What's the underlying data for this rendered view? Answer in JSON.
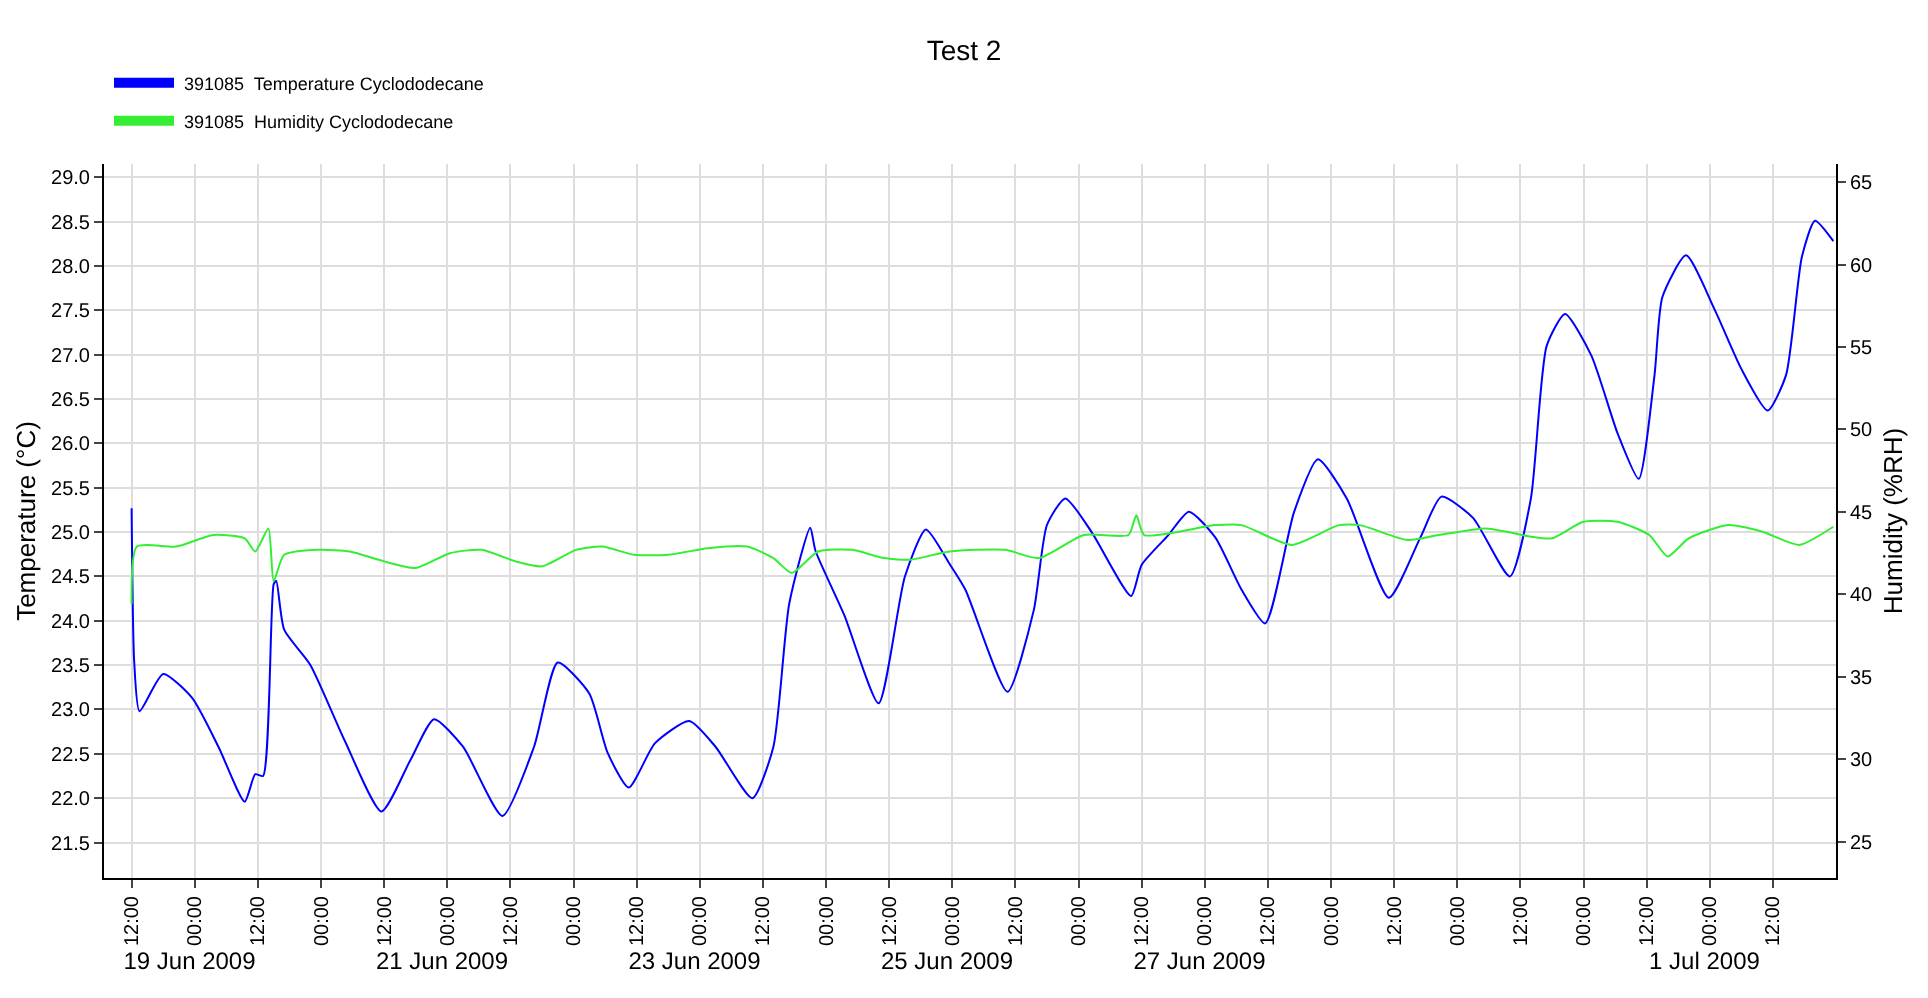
{
  "chart_data": {
    "type": "line",
    "title": "Test 2",
    "ylabel": "Temperature (°C)",
    "y2label": "Humidity (%RH)",
    "xlim": [
      "2009-06-19T06:45",
      "2009-07-03T00:00"
    ],
    "xticks": [
      {
        "value": "2009-06-19T12:00",
        "label": "12:00"
      },
      {
        "value": "2009-06-20T00:00",
        "label": "00:00"
      },
      {
        "value": "2009-06-20T12:00",
        "label": "12:00"
      },
      {
        "value": "2009-06-21T00:00",
        "label": "00:00"
      },
      {
        "value": "2009-06-21T12:00",
        "label": "12:00"
      },
      {
        "value": "2009-06-22T00:00",
        "label": "00:00"
      },
      {
        "value": "2009-06-22T12:00",
        "label": "12:00"
      },
      {
        "value": "2009-06-23T00:00",
        "label": "00:00"
      },
      {
        "value": "2009-06-23T12:00",
        "label": "12:00"
      },
      {
        "value": "2009-06-24T00:00",
        "label": "00:00"
      },
      {
        "value": "2009-06-24T12:00",
        "label": "12:00"
      },
      {
        "value": "2009-06-25T00:00",
        "label": "00:00"
      },
      {
        "value": "2009-06-25T12:00",
        "label": "12:00"
      },
      {
        "value": "2009-06-26T00:00",
        "label": "00:00"
      },
      {
        "value": "2009-06-26T12:00",
        "label": "12:00"
      },
      {
        "value": "2009-06-27T00:00",
        "label": "00:00"
      },
      {
        "value": "2009-06-27T12:00",
        "label": "12:00"
      },
      {
        "value": "2009-06-28T00:00",
        "label": "00:00"
      },
      {
        "value": "2009-06-28T12:00",
        "label": "12:00"
      },
      {
        "value": "2009-06-29T00:00",
        "label": "00:00"
      },
      {
        "value": "2009-06-29T12:00",
        "label": "12:00"
      },
      {
        "value": "2009-06-30T00:00",
        "label": "00:00"
      },
      {
        "value": "2009-06-30T12:00",
        "label": "12:00"
      },
      {
        "value": "2009-07-01T00:00",
        "label": "00:00"
      },
      {
        "value": "2009-07-01T12:00",
        "label": "12:00"
      },
      {
        "value": "2009-07-02T00:00",
        "label": "00:00"
      },
      {
        "value": "2009-07-02T12:00",
        "label": "12:00"
      }
    ],
    "x2lim": [
      "2009-06-19T06:45",
      "2009-07-03T00:00"
    ],
    "x2ticks": [
      {
        "value": "2009-06-19T23:00",
        "label": "19 Jun 2009"
      },
      {
        "value": "2009-06-21T23:00",
        "label": "21 Jun 2009"
      },
      {
        "value": "2009-06-23T23:00",
        "label": "23 Jun 2009"
      },
      {
        "value": "2009-06-25T23:00",
        "label": "25 Jun 2009"
      },
      {
        "value": "2009-06-27T23:00",
        "label": "27 Jun 2009"
      },
      {
        "value": "2009-07-01T23:00",
        "label": "1 Jul 2009"
      }
    ],
    "ylim": [
      21.1,
      29.15
    ],
    "yticks": [
      21.5,
      {
        "value": 22,
        "label": "22.0"
      },
      22.5,
      {
        "value": 23,
        "label": "23.0"
      },
      23.5,
      {
        "value": 24,
        "label": "24.0"
      },
      24.5,
      {
        "value": 25,
        "label": "25.0"
      },
      25.5,
      {
        "value": 26,
        "label": "26.0"
      },
      26.5,
      {
        "value": 27,
        "label": "27.0"
      },
      27.5,
      {
        "value": 28,
        "label": "28.0"
      },
      28.5,
      {
        "value": 29,
        "label": "29.0"
      }
    ],
    "y2lim": [
      22.8,
      66.1
    ],
    "y2ticks": [
      25,
      30,
      35,
      40,
      45,
      50,
      55,
      60,
      65
    ],
    "grid": true,
    "legend": "top left",
    "series": [
      {
        "name": "391085  Temperature Cyclododecane",
        "color": "#0000ff",
        "x": [
          "2009-06-19T12:00",
          "2009-06-19T12:30",
          "2009-06-19T13:30",
          "2009-06-19T18:00",
          "2009-06-19T23:30",
          "2009-06-20T04:30",
          "2009-06-20T09:30",
          "2009-06-20T11:30",
          "2009-06-20T13:00",
          "2009-06-20T15:00",
          "2009-06-20T15:30",
          "2009-06-20T17:00",
          "2009-06-20T22:00",
          "2009-06-21T04:30",
          "2009-06-21T11:30",
          "2009-06-21T17:00",
          "2009-06-21T21:30",
          "2009-06-22T03:00",
          "2009-06-22T10:30",
          "2009-06-22T16:30",
          "2009-06-22T21:00",
          "2009-06-23T03:00",
          "2009-06-23T06:30",
          "2009-06-23T10:30",
          "2009-06-23T15:30",
          "2009-06-23T22:00",
          "2009-06-24T03:00",
          "2009-06-24T10:00",
          "2009-06-24T14:00",
          "2009-06-24T17:00",
          "2009-06-24T21:00",
          "2009-06-24T22:00",
          "2009-06-25T03:30",
          "2009-06-25T10:00",
          "2009-06-25T15:00",
          "2009-06-25T19:00",
          "2009-06-25T23:30",
          "2009-06-26T02:30",
          "2009-06-26T10:30",
          "2009-06-26T15:30",
          "2009-06-26T18:00",
          "2009-06-26T21:30",
          "2009-06-27T02:30",
          "2009-06-27T10:00",
          "2009-06-27T12:00",
          "2009-06-27T17:00",
          "2009-06-27T21:00",
          "2009-06-28T02:00",
          "2009-06-28T07:00",
          "2009-06-28T11:30",
          "2009-06-28T17:00",
          "2009-06-28T21:30",
          "2009-06-29T03:00",
          "2009-06-29T11:00",
          "2009-06-29T17:00",
          "2009-06-29T21:00",
          "2009-06-30T03:00",
          "2009-06-30T10:00",
          "2009-06-30T14:00",
          "2009-06-30T17:00",
          "2009-06-30T20:30",
          "2009-07-01T01:30",
          "2009-07-01T06:30",
          "2009-07-01T10:30",
          "2009-07-01T13:30",
          "2009-07-01T15:00",
          "2009-07-01T19:30",
          "2009-07-02T01:00",
          "2009-07-02T06:00",
          "2009-07-02T11:00",
          "2009-07-02T14:30",
          "2009-07-02T17:30",
          "2009-07-02T20:00",
          "2009-07-02T23:30"
        ],
        "values": [
          25.27,
          23.53,
          22.98,
          23.4,
          23.13,
          22.58,
          21.96,
          22.27,
          22.25,
          24.41,
          24.45,
          23.9,
          23.5,
          22.65,
          21.85,
          22.43,
          22.89,
          22.58,
          21.8,
          22.58,
          23.53,
          23.18,
          22.51,
          22.12,
          22.62,
          22.87,
          22.58,
          22.0,
          22.58,
          24.19,
          25.05,
          24.79,
          24.06,
          23.07,
          24.5,
          25.03,
          24.64,
          24.35,
          23.2,
          24.12,
          25.08,
          25.38,
          25.0,
          24.28,
          24.63,
          24.96,
          25.23,
          24.94,
          24.35,
          23.97,
          25.23,
          25.82,
          25.38,
          24.26,
          24.94,
          25.4,
          25.16,
          24.5,
          25.38,
          27.1,
          27.46,
          26.99,
          26.11,
          25.6,
          26.77,
          27.65,
          28.12,
          27.5,
          26.84,
          26.37,
          26.77,
          28.1,
          28.51,
          28.28
        ]
      },
      {
        "name": "391085  Humidity Cyclododecane",
        "color": "#33ee33",
        "axis": "y2",
        "x": [
          "2009-06-19T12:00",
          "2009-06-19T13:00",
          "2009-06-19T20:30",
          "2009-06-20T03:30",
          "2009-06-20T09:30",
          "2009-06-20T11:30",
          "2009-06-20T14:00",
          "2009-06-20T15:00",
          "2009-06-20T17:00",
          "2009-06-20T23:30",
          "2009-06-21T05:30",
          "2009-06-21T12:00",
          "2009-06-21T18:00",
          "2009-06-22T00:30",
          "2009-06-22T06:30",
          "2009-06-22T13:00",
          "2009-06-22T18:00",
          "2009-06-23T00:30",
          "2009-06-23T05:30",
          "2009-06-23T11:30",
          "2009-06-23T18:00",
          "2009-06-24T01:30",
          "2009-06-24T09:00",
          "2009-06-24T14:00",
          "2009-06-24T17:30",
          "2009-06-24T22:30",
          "2009-06-25T05:00",
          "2009-06-25T11:00",
          "2009-06-25T16:00",
          "2009-06-25T23:30",
          "2009-06-26T10:00",
          "2009-06-26T16:30",
          "2009-06-27T01:00",
          "2009-06-27T09:30",
          "2009-06-27T11:00",
          "2009-06-27T12:30",
          "2009-06-28T02:00",
          "2009-06-28T07:00",
          "2009-06-28T16:30",
          "2009-06-29T01:30",
          "2009-06-29T05:30",
          "2009-06-29T14:30",
          "2009-06-29T20:30",
          "2009-06-30T05:30",
          "2009-06-30T14:00",
          "2009-06-30T18:00",
          "2009-07-01T00:00",
          "2009-07-01T06:30",
          "2009-07-01T12:30",
          "2009-07-01T16:00",
          "2009-07-01T20:00",
          "2009-07-02T03:30",
          "2009-07-02T10:00",
          "2009-07-02T17:00",
          "2009-07-02T23:30"
        ],
        "values": [
          39.4,
          42.9,
          42.9,
          43.6,
          43.4,
          42.6,
          44.0,
          40.8,
          42.4,
          42.7,
          42.6,
          42.0,
          41.6,
          42.5,
          42.7,
          42.0,
          41.7,
          42.7,
          42.9,
          42.4,
          42.4,
          42.8,
          42.9,
          42.2,
          41.3,
          42.6,
          42.7,
          42.2,
          42.1,
          42.6,
          42.7,
          42.2,
          43.6,
          43.6,
          44.8,
          43.6,
          44.2,
          44.2,
          43.0,
          44.2,
          44.2,
          43.3,
          43.6,
          44.0,
          43.5,
          43.4,
          44.4,
          44.4,
          43.6,
          42.3,
          43.4,
          44.2,
          43.8,
          43.0,
          44.1
        ]
      }
    ]
  }
}
